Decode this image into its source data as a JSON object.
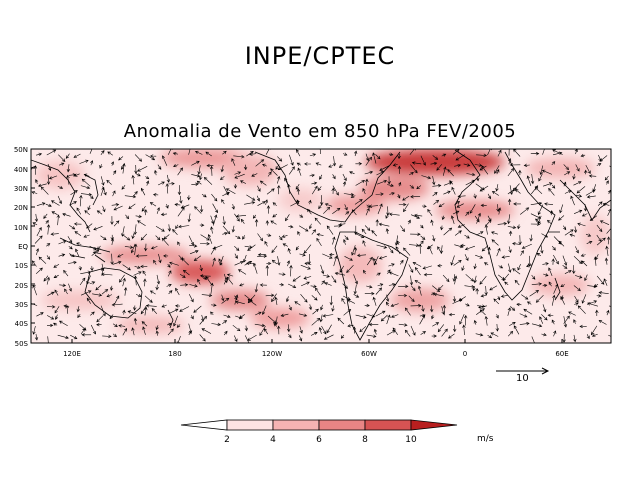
{
  "header": {
    "title": "INPE/CPTEC"
  },
  "map": {
    "title": "Anomalia de Vento em 850 hPa FEV/2005",
    "lat_labels": [
      "50N",
      "40N",
      "30N",
      "20N",
      "10N",
      "EQ",
      "10S",
      "20S",
      "30S",
      "40S",
      "50S"
    ],
    "lon_labels": [
      "120E",
      "180",
      "120W",
      "60W",
      "0",
      "60E"
    ]
  },
  "reference_vector": {
    "label": "10"
  },
  "colorbar": {
    "levels": [
      "2",
      "4",
      "6",
      "8",
      "10"
    ],
    "colors": [
      "#ffffff",
      "#fde3e3",
      "#f5b3b3",
      "#e98585",
      "#d65353",
      "#b81f1f"
    ],
    "units": "m/s"
  }
}
